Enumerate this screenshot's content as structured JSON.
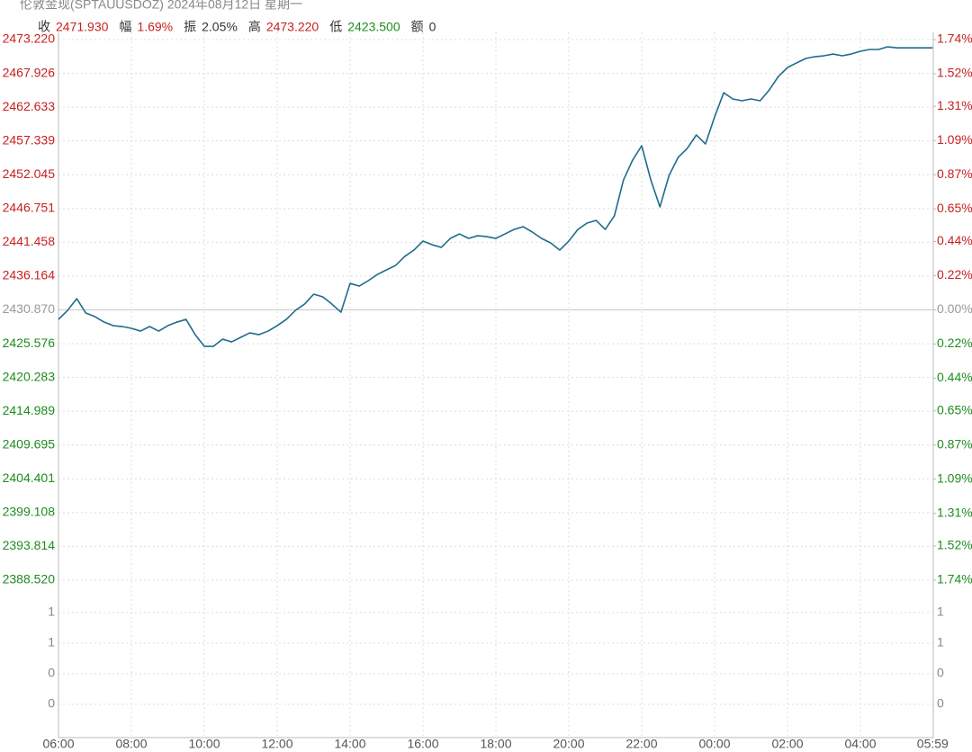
{
  "chart_data": {
    "type": "line",
    "title": "伦敦金现(SPTAUUSDOZ) 2024年08月12日 星期一",
    "stats": [
      {
        "label": "收",
        "value": "2471.930",
        "color": "#c81e1e"
      },
      {
        "label": "幅",
        "value": "1.69%",
        "color": "#c81e1e"
      },
      {
        "label": "振",
        "value": "2.05%",
        "color": "#333333"
      },
      {
        "label": "高",
        "value": "2473.220",
        "color": "#c81e1e"
      },
      {
        "label": "低",
        "value": "2423.500",
        "color": "#1e8c1e"
      },
      {
        "label": "额",
        "value": "0",
        "color": "#333333"
      }
    ],
    "x": [
      "06:00",
      "06:15",
      "06:30",
      "06:45",
      "07:00",
      "07:15",
      "07:30",
      "07:45",
      "08:00",
      "08:15",
      "08:30",
      "08:45",
      "09:00",
      "09:15",
      "09:30",
      "09:45",
      "10:00",
      "10:15",
      "10:30",
      "10:45",
      "11:00",
      "11:15",
      "11:30",
      "11:45",
      "12:00",
      "12:15",
      "12:30",
      "12:45",
      "13:00",
      "13:15",
      "13:30",
      "13:45",
      "14:00",
      "14:15",
      "14:30",
      "14:45",
      "15:00",
      "15:15",
      "15:30",
      "15:45",
      "16:00",
      "16:15",
      "16:30",
      "16:45",
      "17:00",
      "17:15",
      "17:30",
      "17:45",
      "18:00",
      "18:15",
      "18:30",
      "18:45",
      "19:00",
      "19:15",
      "19:30",
      "19:45",
      "20:00",
      "20:15",
      "20:30",
      "20:45",
      "21:00",
      "21:15",
      "21:30",
      "21:45",
      "22:00",
      "22:15",
      "22:30",
      "22:45",
      "23:00",
      "23:15",
      "23:30",
      "23:45",
      "00:00",
      "00:15",
      "00:30",
      "00:45",
      "01:00",
      "01:15",
      "01:30",
      "01:45",
      "02:00",
      "02:15",
      "02:30",
      "02:45",
      "03:00",
      "03:15",
      "03:30",
      "03:45",
      "04:00",
      "04:15",
      "04:30",
      "04:45",
      "05:00",
      "05:15",
      "05:30",
      "05:45",
      "05:59"
    ],
    "values": [
      2429.38,
      2430.79,
      2432.63,
      2430.37,
      2429.81,
      2428.96,
      2428.4,
      2428.26,
      2427.98,
      2427.55,
      2428.26,
      2427.55,
      2428.4,
      2428.96,
      2429.38,
      2426.99,
      2425.16,
      2425.16,
      2426.28,
      2425.86,
      2426.57,
      2427.27,
      2426.99,
      2427.55,
      2428.4,
      2429.38,
      2430.79,
      2431.78,
      2433.33,
      2432.91,
      2431.78,
      2430.51,
      2435.02,
      2434.6,
      2435.45,
      2436.43,
      2437.14,
      2437.84,
      2439.25,
      2440.24,
      2441.65,
      2441.08,
      2440.66,
      2442.07,
      2442.77,
      2442.07,
      2442.49,
      2442.35,
      2442.07,
      2442.77,
      2443.48,
      2443.9,
      2443.06,
      2442.07,
      2441.37,
      2440.24,
      2441.65,
      2443.48,
      2444.47,
      2444.89,
      2443.48,
      2445.59,
      2451.23,
      2454.33,
      2456.59,
      2451.23,
      2447.0,
      2451.94,
      2454.76,
      2456.17,
      2458.28,
      2456.87,
      2461.1,
      2464.9,
      2463.92,
      2463.64,
      2463.92,
      2463.64,
      2465.33,
      2467.44,
      2468.85,
      2469.56,
      2470.26,
      2470.54,
      2470.68,
      2470.96,
      2470.68,
      2470.96,
      2471.39,
      2471.67,
      2471.67,
      2472.09,
      2471.93,
      2471.93,
      2471.93,
      2471.93,
      2471.93
    ],
    "color": "#1f6b8c",
    "xticks": [
      "06:00",
      "08:00",
      "10:00",
      "12:00",
      "14:00",
      "16:00",
      "18:00",
      "20:00",
      "22:00",
      "00:00",
      "02:00",
      "04:00",
      "05:59"
    ],
    "ylim": [
      2388.52,
      2473.22
    ],
    "yticks": [
      {
        "value": 2473.22,
        "label": "2473.220"
      },
      2467.926,
      2462.633,
      2457.339,
      2452.045,
      2446.751,
      2441.458,
      2436.164,
      {
        "value": 2430.87,
        "label": "2430.870"
      },
      2425.576,
      2420.283,
      2414.989,
      2409.695,
      2404.401,
      2399.108,
      2393.814,
      {
        "value": 2388.52,
        "label": "2388.520"
      }
    ],
    "y2lim": [
      -1.74,
      1.74
    ],
    "y2ticks": [
      {
        "value": 1.74,
        "label": "1.74%"
      },
      {
        "value": 1.52,
        "label": "1.52%"
      },
      {
        "value": 1.31,
        "label": "1.31%"
      },
      {
        "value": 1.09,
        "label": "1.09%"
      },
      {
        "value": 0.87,
        "label": "0.87%"
      },
      {
        "value": 0.65,
        "label": "0.65%"
      },
      {
        "value": 0.44,
        "label": "0.44%"
      },
      {
        "value": 0.22,
        "label": "0.22%"
      },
      {
        "value": 0,
        "label": "0.00%"
      },
      {
        "value": -0.22,
        "label": "0.22%"
      },
      {
        "value": -0.44,
        "label": "0.44%"
      },
      {
        "value": -0.65,
        "label": "0.65%"
      },
      {
        "value": -0.87,
        "label": "0.87%"
      },
      {
        "value": -1.09,
        "label": "1.09%"
      },
      {
        "value": -1.31,
        "label": "1.31%"
      },
      {
        "value": -1.52,
        "label": "1.52%"
      },
      {
        "value": -1.74,
        "label": "1.74%"
      }
    ],
    "volume_ticks": [
      1,
      1,
      0,
      0
    ],
    "up_color": "#c81e1e",
    "down_color": "#1e8c1e",
    "flat_color": "#999999",
    "grid": true
  }
}
